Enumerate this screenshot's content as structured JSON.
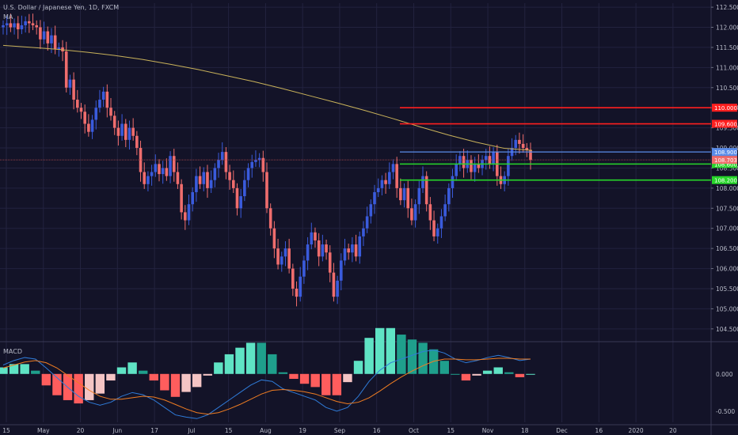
{
  "header": {
    "symbol_line": "U.S. Dollar / Japanese Yen, 1D, FXCM",
    "ma_label": "MA",
    "macd_label": "MACD"
  },
  "colors": {
    "background": "#131328",
    "grid": "#23233f",
    "up_candle": "#3a5bdc",
    "down_candle": "#ef6d6d",
    "ma_line": "#c9b25a",
    "macd_line": "#2f7bd8",
    "signal_line": "#f07d22",
    "hist_pos_strong": "#5fe3c4",
    "hist_pos_weak": "#1f9f8c",
    "hist_neg_strong": "#ff5d5d",
    "hist_neg_weak": "#f4c4c4",
    "resistance": "#ff1f1f",
    "support": "#27d62a",
    "current_level": "#5a8be8",
    "price_tag": "#ef6d6d"
  },
  "chart_data": {
    "type": "candlestick",
    "price_axis": {
      "ticks": [
        "112.500",
        "112.000",
        "111.500",
        "111.000",
        "110.500",
        "110.000",
        "109.500",
        "109.000",
        "108.500",
        "108.000",
        "107.500",
        "107.000",
        "106.500",
        "106.000",
        "105.500",
        "105.000",
        "104.500"
      ],
      "range": [
        104.3,
        112.6
      ]
    },
    "macd_axis": {
      "ticks": [
        "0.000",
        "-0.500"
      ],
      "range": [
        -0.65,
        0.38
      ]
    },
    "time_axis": {
      "labels": [
        "15",
        "May",
        "20",
        "Jun",
        "17",
        "Jul",
        "15",
        "Aug",
        "19",
        "Sep",
        "16",
        "Oct",
        "15",
        "Nov",
        "18",
        "Dec",
        "16",
        "2020",
        "20"
      ]
    },
    "horizontal_levels": [
      {
        "label": "110.000",
        "value": 110.0,
        "kind": "resistance"
      },
      {
        "label": "109.600",
        "value": 109.6,
        "kind": "resistance"
      },
      {
        "label": "108.900",
        "value": 108.9,
        "kind": "current"
      },
      {
        "label": "108.600",
        "value": 108.6,
        "kind": "support"
      },
      {
        "label": "108.200",
        "value": 108.2,
        "kind": "support"
      }
    ],
    "last_price": {
      "label": "108.703",
      "value": 108.703
    },
    "close_series": [
      112.05,
      112.1,
      112.0,
      112.1,
      111.95,
      112.05,
      112.15,
      112.1,
      112.05,
      112.0,
      111.7,
      111.9,
      111.6,
      111.8,
      111.45,
      111.5,
      111.4,
      110.5,
      110.7,
      110.2,
      110.0,
      109.9,
      109.6,
      109.4,
      109.7,
      110.0,
      110.2,
      110.4,
      110.0,
      109.8,
      109.5,
      109.3,
      109.6,
      109.2,
      109.5,
      109.3,
      109.0,
      108.4,
      108.1,
      108.3,
      108.4,
      108.6,
      108.35,
      108.5,
      108.3,
      108.8,
      108.4,
      108.1,
      107.4,
      107.2,
      107.6,
      107.9,
      108.3,
      108.1,
      108.4,
      108.0,
      108.2,
      108.5,
      108.7,
      108.9,
      108.4,
      108.2,
      108.0,
      107.5,
      107.8,
      108.2,
      108.5,
      108.65,
      108.7,
      108.75,
      108.4,
      107.5,
      107.0,
      106.5,
      106.1,
      106.3,
      106.5,
      106.0,
      105.5,
      105.3,
      105.8,
      106.2,
      106.6,
      106.9,
      106.7,
      106.3,
      106.6,
      106.4,
      105.9,
      105.3,
      105.7,
      106.2,
      106.5,
      106.4,
      106.6,
      106.3,
      106.8,
      107.0,
      107.3,
      107.6,
      107.9,
      108.0,
      108.2,
      108.1,
      108.4,
      108.6,
      108.0,
      107.7,
      108.0,
      107.5,
      107.2,
      107.6,
      108.0,
      108.3,
      107.6,
      107.2,
      106.8,
      107.0,
      107.3,
      107.6,
      108.0,
      108.3,
      108.6,
      108.8,
      108.5,
      108.7,
      108.4,
      108.6,
      108.5,
      108.7,
      108.8,
      108.6,
      108.9,
      108.3,
      108.1,
      108.3,
      108.8,
      109.0,
      109.2,
      109.1,
      109.0,
      108.95,
      108.7
    ],
    "ma_series": [
      111.55,
      111.5,
      111.45,
      111.38,
      111.3,
      111.2,
      111.08,
      110.95,
      110.8,
      110.65,
      110.48,
      110.3,
      110.12,
      109.93,
      109.73,
      109.52,
      109.32,
      109.14,
      108.99,
      108.94
    ],
    "macd_series": [
      0.12,
      0.18,
      0.22,
      0.2,
      0.08,
      -0.05,
      -0.18,
      -0.3,
      -0.38,
      -0.42,
      -0.38,
      -0.3,
      -0.25,
      -0.28,
      -0.35,
      -0.45,
      -0.55,
      -0.58,
      -0.6,
      -0.55,
      -0.45,
      -0.35,
      -0.25,
      -0.15,
      -0.08,
      -0.1,
      -0.2,
      -0.25,
      -0.3,
      -0.35,
      -0.45,
      -0.5,
      -0.45,
      -0.3,
      -0.1,
      0.05,
      0.15,
      0.2,
      0.25,
      0.3,
      0.32,
      0.28,
      0.2,
      0.15,
      0.18,
      0.22,
      0.25,
      0.22,
      0.18,
      0.2
    ],
    "signal_series": [
      0.08,
      0.12,
      0.16,
      0.18,
      0.15,
      0.08,
      -0.02,
      -0.12,
      -0.22,
      -0.3,
      -0.34,
      -0.34,
      -0.32,
      -0.3,
      -0.31,
      -0.35,
      -0.41,
      -0.47,
      -0.52,
      -0.54,
      -0.52,
      -0.47,
      -0.41,
      -0.34,
      -0.27,
      -0.22,
      -0.21,
      -0.22,
      -0.24,
      -0.27,
      -0.32,
      -0.37,
      -0.4,
      -0.38,
      -0.32,
      -0.23,
      -0.13,
      -0.04,
      0.04,
      0.11,
      0.17,
      0.2,
      0.2,
      0.19,
      0.19,
      0.2,
      0.21,
      0.21,
      0.2,
      0.2
    ]
  }
}
